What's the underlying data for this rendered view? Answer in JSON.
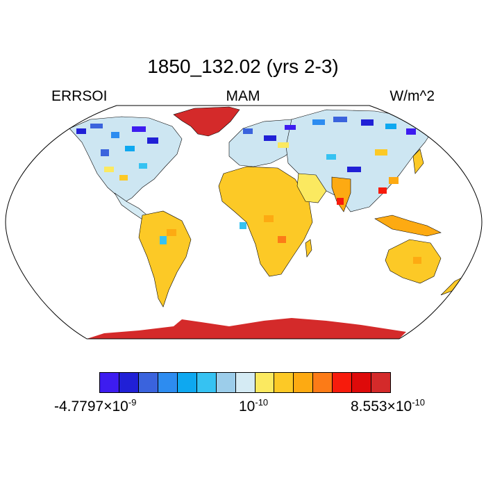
{
  "title": "1850_132.02 (yrs 2-3)",
  "variable": "ERRSOI",
  "season": "MAM",
  "units": "W/m^2",
  "projection": "Robinson",
  "colorbar": {
    "colors": [
      "#3d1cf0",
      "#2020d6",
      "#3a63dd",
      "#2d8cf0",
      "#0ea8f0",
      "#36c2f2",
      "#9ccdea",
      "#d5ebf4",
      "#fbe960",
      "#fcc926",
      "#fdaa12",
      "#fc7b17",
      "#f71b0c",
      "#de0a0a",
      "#d42a2a"
    ],
    "min_label": {
      "mantissa": "-4.7797×10",
      "exponent": "-9"
    },
    "mid_label": {
      "mantissa": "10",
      "exponent": "-10"
    },
    "max_label": {
      "mantissa": "8.553×10",
      "exponent": "-10"
    }
  }
}
